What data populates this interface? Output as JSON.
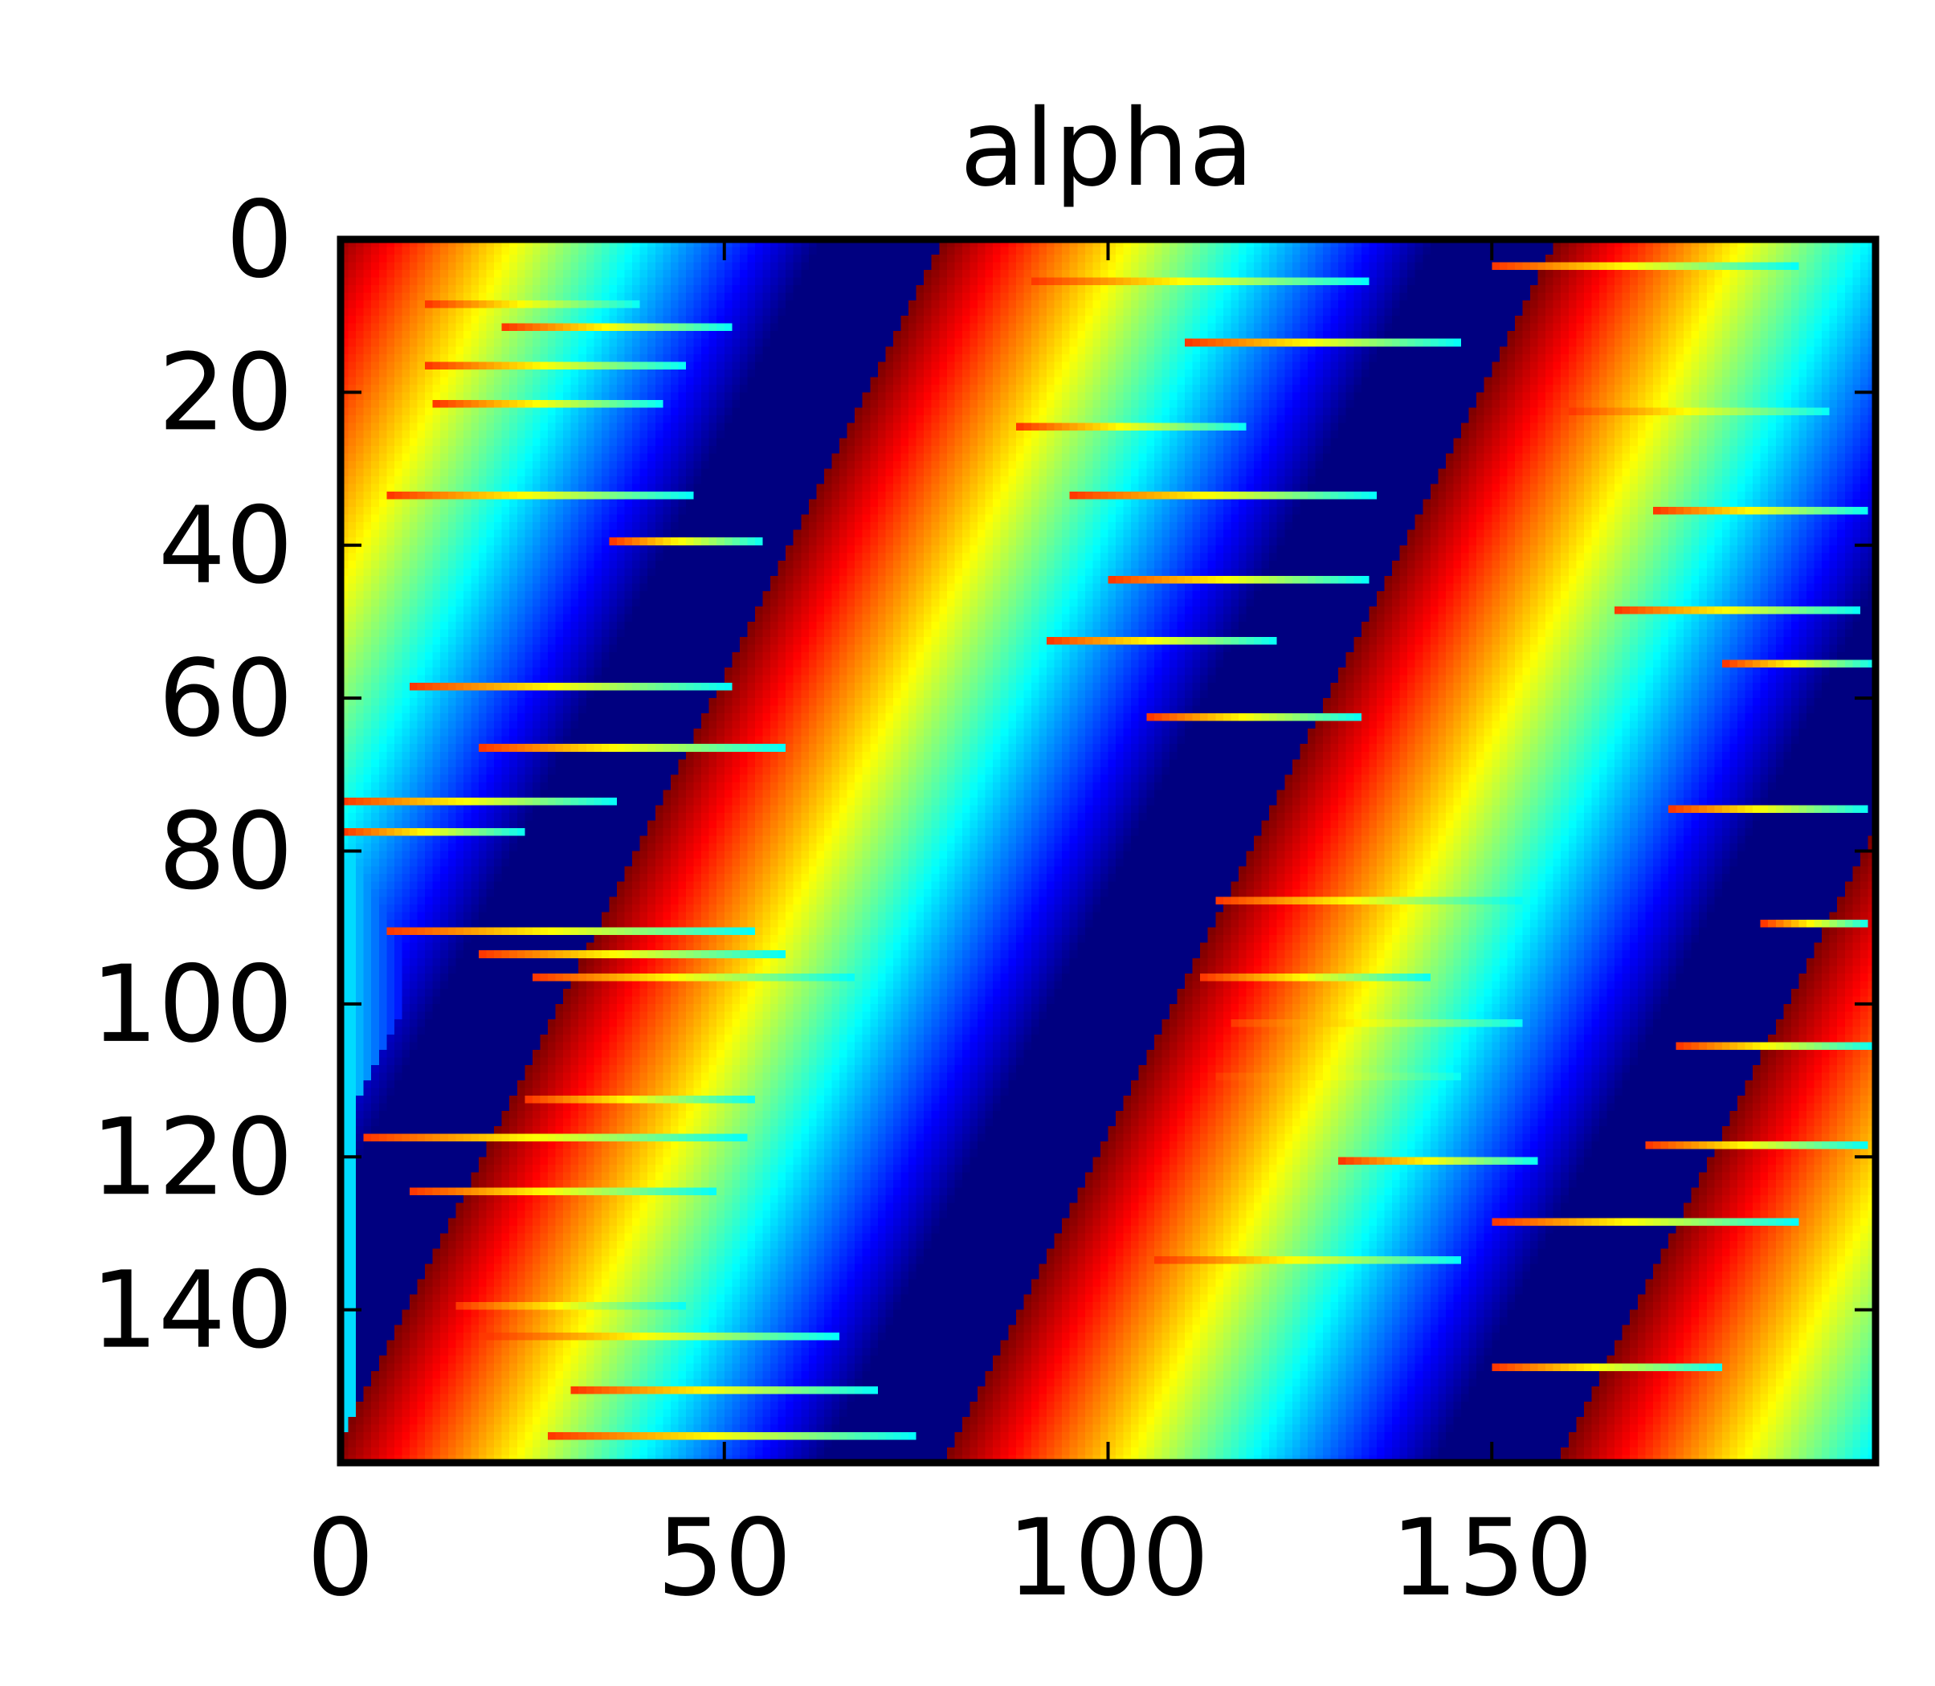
{
  "chart_data": {
    "type": "heatmap",
    "title": "alpha",
    "xlabel": "",
    "ylabel": "",
    "colormap": "jet",
    "n_cols": 200,
    "n_rows": 160,
    "xlim": [
      0,
      200
    ],
    "ylim": [
      160,
      0
    ],
    "y_inverted": true,
    "x_ticks": [
      0,
      50,
      100,
      150
    ],
    "y_ticks": [
      0,
      20,
      40,
      60,
      80,
      100,
      120,
      140
    ],
    "x_tick_labels": [
      "0",
      "50",
      "100",
      "150"
    ],
    "y_tick_labels": [
      "0",
      "20",
      "40",
      "60",
      "80",
      "100",
      "120",
      "140"
    ],
    "value_range": [
      0,
      1
    ],
    "pattern": {
      "description_units": "cells",
      "band_period_cols": 80,
      "band_start_col_row0": 78,
      "band_col_shift_per_row": -0.5,
      "sawtooth": "value peaks (red) at each band front and decays through yellow, cyan, blue to dark blue over one period"
    },
    "streaks": [
      {
        "row": 8,
        "col": 11,
        "len": 28
      },
      {
        "row": 11,
        "col": 21,
        "len": 30
      },
      {
        "row": 16,
        "col": 11,
        "len": 34
      },
      {
        "row": 21,
        "col": 12,
        "len": 30
      },
      {
        "row": 33,
        "col": 6,
        "len": 40
      },
      {
        "row": 39,
        "col": 35,
        "len": 20
      },
      {
        "row": 58,
        "col": 9,
        "len": 42
      },
      {
        "row": 66,
        "col": 18,
        "len": 40
      },
      {
        "row": 73,
        "col": 0,
        "len": 36
      },
      {
        "row": 77,
        "col": 0,
        "len": 24
      },
      {
        "row": 90,
        "col": 6,
        "len": 48
      },
      {
        "row": 93,
        "col": 18,
        "len": 40
      },
      {
        "row": 96,
        "col": 25,
        "len": 42
      },
      {
        "row": 112,
        "col": 24,
        "len": 30
      },
      {
        "row": 117,
        "col": 3,
        "len": 50
      },
      {
        "row": 124,
        "col": 9,
        "len": 40
      },
      {
        "row": 139,
        "col": 15,
        "len": 30
      },
      {
        "row": 143,
        "col": 19,
        "len": 46
      },
      {
        "row": 150,
        "col": 30,
        "len": 40
      },
      {
        "row": 156,
        "col": 27,
        "len": 48
      },
      {
        "row": 5,
        "col": 90,
        "len": 44
      },
      {
        "row": 13,
        "col": 110,
        "len": 36
      },
      {
        "row": 24,
        "col": 88,
        "len": 30
      },
      {
        "row": 33,
        "col": 95,
        "len": 40
      },
      {
        "row": 44,
        "col": 100,
        "len": 34
      },
      {
        "row": 52,
        "col": 92,
        "len": 30
      },
      {
        "row": 62,
        "col": 105,
        "len": 28
      },
      {
        "row": 86,
        "col": 114,
        "len": 40
      },
      {
        "row": 96,
        "col": 112,
        "len": 30
      },
      {
        "row": 102,
        "col": 116,
        "len": 38
      },
      {
        "row": 109,
        "col": 114,
        "len": 32
      },
      {
        "row": 120,
        "col": 130,
        "len": 26
      },
      {
        "row": 133,
        "col": 106,
        "len": 40
      },
      {
        "row": 147,
        "col": 150,
        "len": 30
      },
      {
        "row": 3,
        "col": 150,
        "len": 40
      },
      {
        "row": 22,
        "col": 160,
        "len": 34
      },
      {
        "row": 35,
        "col": 171,
        "len": 28
      },
      {
        "row": 48,
        "col": 166,
        "len": 32
      },
      {
        "row": 55,
        "col": 180,
        "len": 20
      },
      {
        "row": 74,
        "col": 173,
        "len": 26
      },
      {
        "row": 89,
        "col": 185,
        "len": 14
      },
      {
        "row": 105,
        "col": 174,
        "len": 26
      },
      {
        "row": 118,
        "col": 170,
        "len": 29
      },
      {
        "row": 128,
        "col": 150,
        "len": 40
      }
    ]
  }
}
